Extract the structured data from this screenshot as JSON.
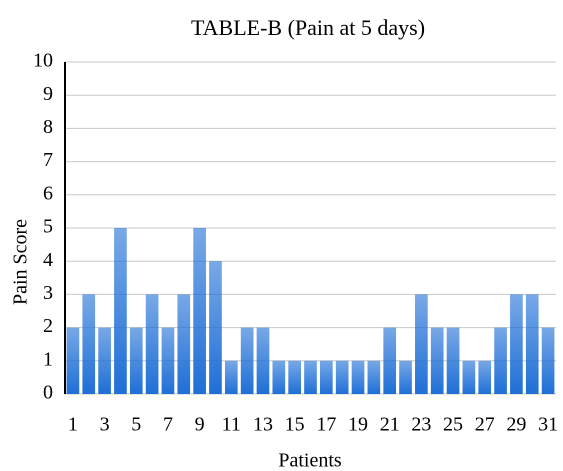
{
  "chart_data": {
    "type": "bar",
    "title": "TABLE-B (Pain at 5 days)",
    "xlabel": "Patients",
    "ylabel": "Pain Score",
    "categories": [
      "1",
      null,
      "3",
      null,
      "5",
      null,
      "7",
      null,
      "9",
      null,
      "11",
      null,
      "13",
      null,
      "15",
      null,
      "17",
      null,
      "19",
      null,
      "21",
      null,
      "23",
      null,
      "25",
      null,
      "27",
      null,
      "29",
      null,
      "31"
    ],
    "values": [
      2,
      3,
      2,
      5,
      2,
      3,
      2,
      3,
      5,
      4,
      1,
      2,
      2,
      1,
      1,
      1,
      1,
      1,
      1,
      1,
      2,
      1,
      3,
      2,
      2,
      1,
      1,
      2,
      3,
      3,
      2
    ],
    "color": "#1f6fd6",
    "ylim": [
      0,
      10
    ],
    "yticks": [
      0,
      1,
      2,
      3,
      4,
      5,
      6,
      7,
      8,
      9,
      10
    ],
    "grid": true
  }
}
